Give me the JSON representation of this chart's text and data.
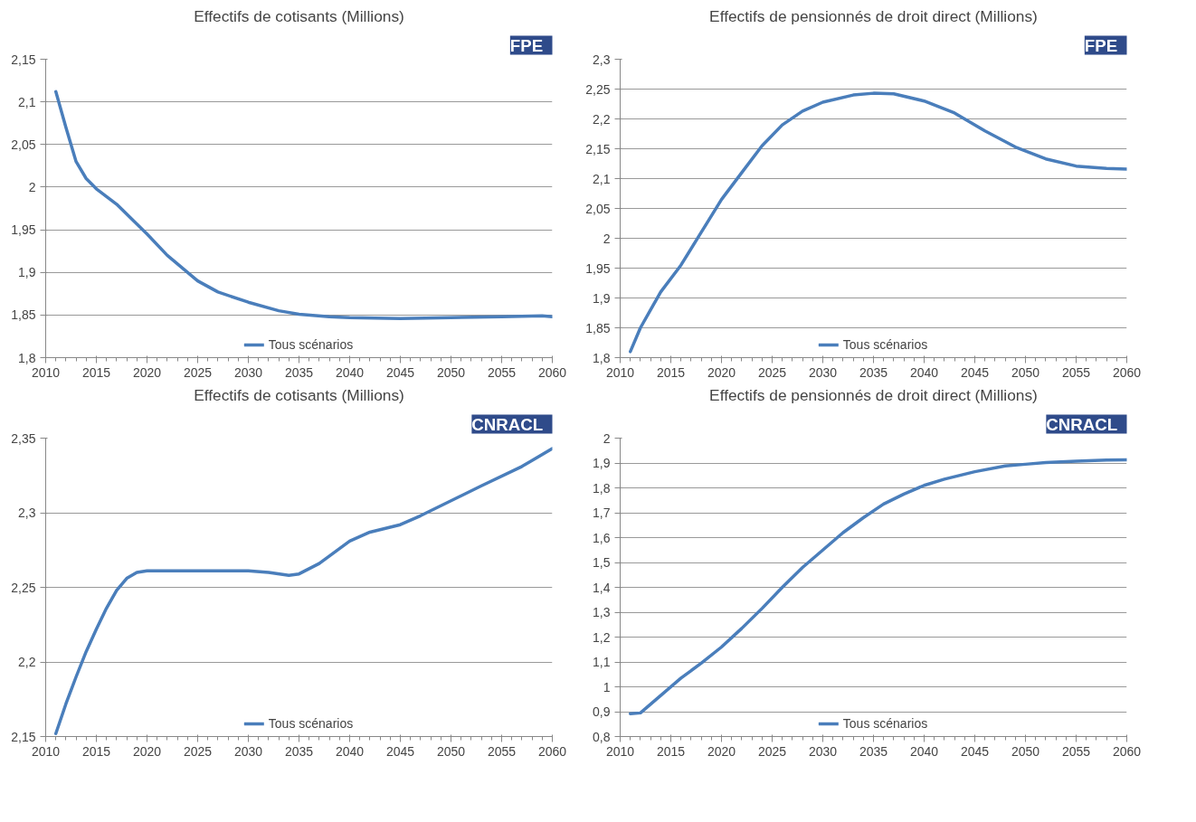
{
  "chart_data": [
    {
      "type": "line",
      "title": "Effectifs de cotisants (Millions)",
      "annotations": [
        "FPE"
      ],
      "grid": "y",
      "legend": "bottom",
      "line_style": "solid",
      "marker": "none",
      "xlim": [
        2010,
        2060
      ],
      "xticks": [
        2010,
        2015,
        2020,
        2025,
        2030,
        2035,
        2040,
        2045,
        2050,
        2055,
        2060
      ],
      "ylim": [
        1.8,
        2.15
      ],
      "yticks": [
        {
          "value": 1.8,
          "label": "1,8"
        },
        {
          "value": 1.85,
          "label": "1,85"
        },
        {
          "value": 1.9,
          "label": "1,9"
        },
        {
          "value": 1.95,
          "label": "1,95"
        },
        {
          "value": 2,
          "label": "2"
        },
        {
          "value": 2.05,
          "label": "2,05"
        },
        {
          "value": 2.1,
          "label": "2,1"
        },
        {
          "value": 2.15,
          "label": "2,15"
        }
      ],
      "x": [
        2011,
        2012,
        2013,
        2014,
        2015,
        2017,
        2020,
        2022,
        2025,
        2027,
        2030,
        2033,
        2035,
        2038,
        2040,
        2045,
        2050,
        2055,
        2059,
        2060
      ],
      "series": [
        {
          "name": "Tous scénarios",
          "color": "#4a7ebb",
          "values": [
            2.112,
            2.07,
            2.03,
            2.01,
            1.998,
            1.98,
            1.945,
            1.92,
            1.89,
            1.877,
            1.865,
            1.855,
            1.851,
            1.848,
            1.847,
            1.846,
            1.847,
            1.848,
            1.849,
            1.848
          ]
        }
      ]
    },
    {
      "type": "line",
      "title": "Effectifs de pensionnés de droit direct (Millions)",
      "annotations": [
        "FPE"
      ],
      "grid": "y",
      "legend": "bottom",
      "line_style": "solid",
      "marker": "none",
      "xlim": [
        2010,
        2060
      ],
      "xticks": [
        2010,
        2015,
        2020,
        2025,
        2030,
        2035,
        2040,
        2045,
        2050,
        2055,
        2060
      ],
      "ylim": [
        1.8,
        2.3
      ],
      "yticks": [
        {
          "value": 1.8,
          "label": "1,8"
        },
        {
          "value": 1.85,
          "label": "1,85"
        },
        {
          "value": 1.9,
          "label": "1,9"
        },
        {
          "value": 1.95,
          "label": "1,95"
        },
        {
          "value": 2,
          "label": "2"
        },
        {
          "value": 2.05,
          "label": "2,05"
        },
        {
          "value": 2.1,
          "label": "2,1"
        },
        {
          "value": 2.15,
          "label": "2,15"
        },
        {
          "value": 2.2,
          "label": "2,2"
        },
        {
          "value": 2.25,
          "label": "2,25"
        },
        {
          "value": 2.3,
          "label": "2,3"
        }
      ],
      "x": [
        2011,
        2012,
        2013,
        2014,
        2016,
        2018,
        2020,
        2022,
        2024,
        2026,
        2028,
        2030,
        2033,
        2035,
        2037,
        2040,
        2043,
        2046,
        2049,
        2052,
        2055,
        2058,
        2060
      ],
      "series": [
        {
          "name": "Tous scénarios",
          "color": "#4a7ebb",
          "values": [
            1.81,
            1.85,
            1.88,
            1.91,
            1.955,
            2.01,
            2.065,
            2.11,
            2.155,
            2.19,
            2.213,
            2.228,
            2.24,
            2.243,
            2.242,
            2.23,
            2.21,
            2.18,
            2.153,
            2.133,
            2.121,
            2.117,
            2.116
          ]
        }
      ]
    },
    {
      "type": "line",
      "title": "Effectifs de cotisants (Millions)",
      "annotations": [
        "CNRACL"
      ],
      "grid": "y",
      "legend": "bottom",
      "line_style": "solid",
      "marker": "none",
      "xlim": [
        2010,
        2060
      ],
      "xticks": [
        2010,
        2015,
        2020,
        2025,
        2030,
        2035,
        2040,
        2045,
        2050,
        2055,
        2060
      ],
      "ylim": [
        2.15,
        2.35
      ],
      "yticks": [
        {
          "value": 2.15,
          "label": "2,15"
        },
        {
          "value": 2.2,
          "label": "2,2"
        },
        {
          "value": 2.25,
          "label": "2,25"
        },
        {
          "value": 2.3,
          "label": "2,3"
        },
        {
          "value": 2.35,
          "label": "2,35"
        }
      ],
      "x": [
        2011,
        2012,
        2013,
        2014,
        2015,
        2016,
        2017,
        2018,
        2019,
        2020,
        2025,
        2030,
        2032,
        2034,
        2035,
        2037,
        2040,
        2042,
        2045,
        2047,
        2050,
        2053,
        2057,
        2060
      ],
      "series": [
        {
          "name": "Tous scénarios",
          "color": "#4a7ebb",
          "values": [
            2.152,
            2.172,
            2.19,
            2.207,
            2.222,
            2.236,
            2.248,
            2.256,
            2.26,
            2.261,
            2.261,
            2.261,
            2.26,
            2.258,
            2.259,
            2.266,
            2.281,
            2.287,
            2.292,
            2.298,
            2.308,
            2.318,
            2.331,
            2.343
          ]
        }
      ]
    },
    {
      "type": "line",
      "title": "Effectifs de pensionnés de droit direct (Millions)",
      "annotations": [
        "CNRACL"
      ],
      "grid": "y",
      "legend": "bottom",
      "line_style": "solid",
      "marker": "none",
      "xlim": [
        2010,
        2060
      ],
      "xticks": [
        2010,
        2015,
        2020,
        2025,
        2030,
        2035,
        2040,
        2045,
        2050,
        2055,
        2060
      ],
      "ylim": [
        0.8,
        2
      ],
      "yticks": [
        {
          "value": 0.8,
          "label": "0,8"
        },
        {
          "value": 0.9,
          "label": "0,9"
        },
        {
          "value": 1,
          "label": "1"
        },
        {
          "value": 1.1,
          "label": "1,1"
        },
        {
          "value": 1.2,
          "label": "1,2"
        },
        {
          "value": 1.3,
          "label": "1,3"
        },
        {
          "value": 1.4,
          "label": "1,4"
        },
        {
          "value": 1.5,
          "label": "1,5"
        },
        {
          "value": 1.6,
          "label": "1,6"
        },
        {
          "value": 1.7,
          "label": "1,7"
        },
        {
          "value": 1.8,
          "label": "1,8"
        },
        {
          "value": 1.9,
          "label": "1,9"
        },
        {
          "value": 2,
          "label": "2"
        }
      ],
      "x": [
        2011,
        2012,
        2014,
        2016,
        2018,
        2020,
        2022,
        2024,
        2026,
        2028,
        2030,
        2032,
        2034,
        2036,
        2038,
        2040,
        2042,
        2045,
        2048,
        2050,
        2052,
        2055,
        2058,
        2060
      ],
      "series": [
        {
          "name": "Tous scénarios",
          "color": "#4a7ebb",
          "values": [
            0.892,
            0.895,
            0.965,
            1.035,
            1.095,
            1.16,
            1.235,
            1.315,
            1.4,
            1.48,
            1.55,
            1.62,
            1.68,
            1.735,
            1.775,
            1.81,
            1.835,
            1.865,
            1.888,
            1.895,
            1.902,
            1.907,
            1.912,
            1.913
          ]
        }
      ]
    }
  ]
}
